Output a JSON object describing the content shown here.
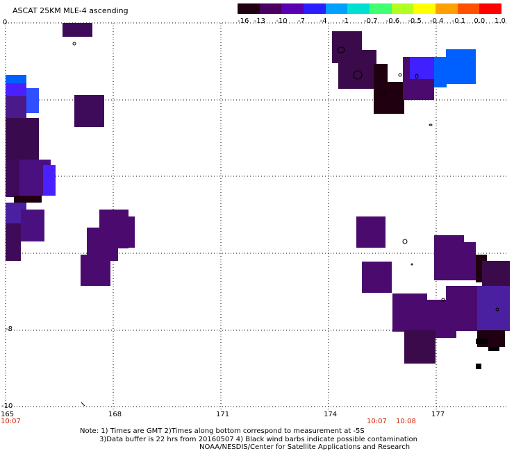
{
  "header": {
    "title": "ASCAT 25KM MLE-4 ascending"
  },
  "colorbar": {
    "tick_labels": [
      "-16",
      "-13",
      "-10",
      "-7",
      "-4",
      "-1",
      "-0.7",
      "-0.6",
      "-0.5",
      "-0.4",
      "-0.1",
      "0.0",
      "1.0"
    ],
    "colors": [
      "#200010",
      "#4a0060",
      "#5a00b0",
      "#2a20ff",
      "#00a0ff",
      "#00e0d0",
      "#40ff70",
      "#b0ff20",
      "#ffff00",
      "#ffa000",
      "#ff5000",
      "#ff0000"
    ]
  },
  "axes": {
    "x_ticks": [
      "165",
      "168",
      "171",
      "174",
      "177"
    ],
    "y_ticks": [
      "0",
      "-2",
      "-4",
      "-6",
      "-8",
      "-10"
    ],
    "y_labels_visible": [
      "0",
      "-8",
      "-10"
    ]
  },
  "times": {
    "left": "10:07",
    "right_a": "10:07",
    "right_b": "10:08"
  },
  "notes": {
    "line1": "Note: 1) Times are GMT 2)Times along bottom correspond to measurement at -5S",
    "line2": "3)Data buffer is 22 hrs from 20160507 4) Black wind barbs indicate possible contamination",
    "line3": "NOAA/NESDIS/Center for Satellite Applications and Research"
  },
  "colors": {
    "dark_purple": "#3a0a4a",
    "purple": "#4a0a6e",
    "violet": "#5a10a0",
    "blue_violet": "#4020ff",
    "blue": "#0060ff",
    "black": "#000000"
  }
}
